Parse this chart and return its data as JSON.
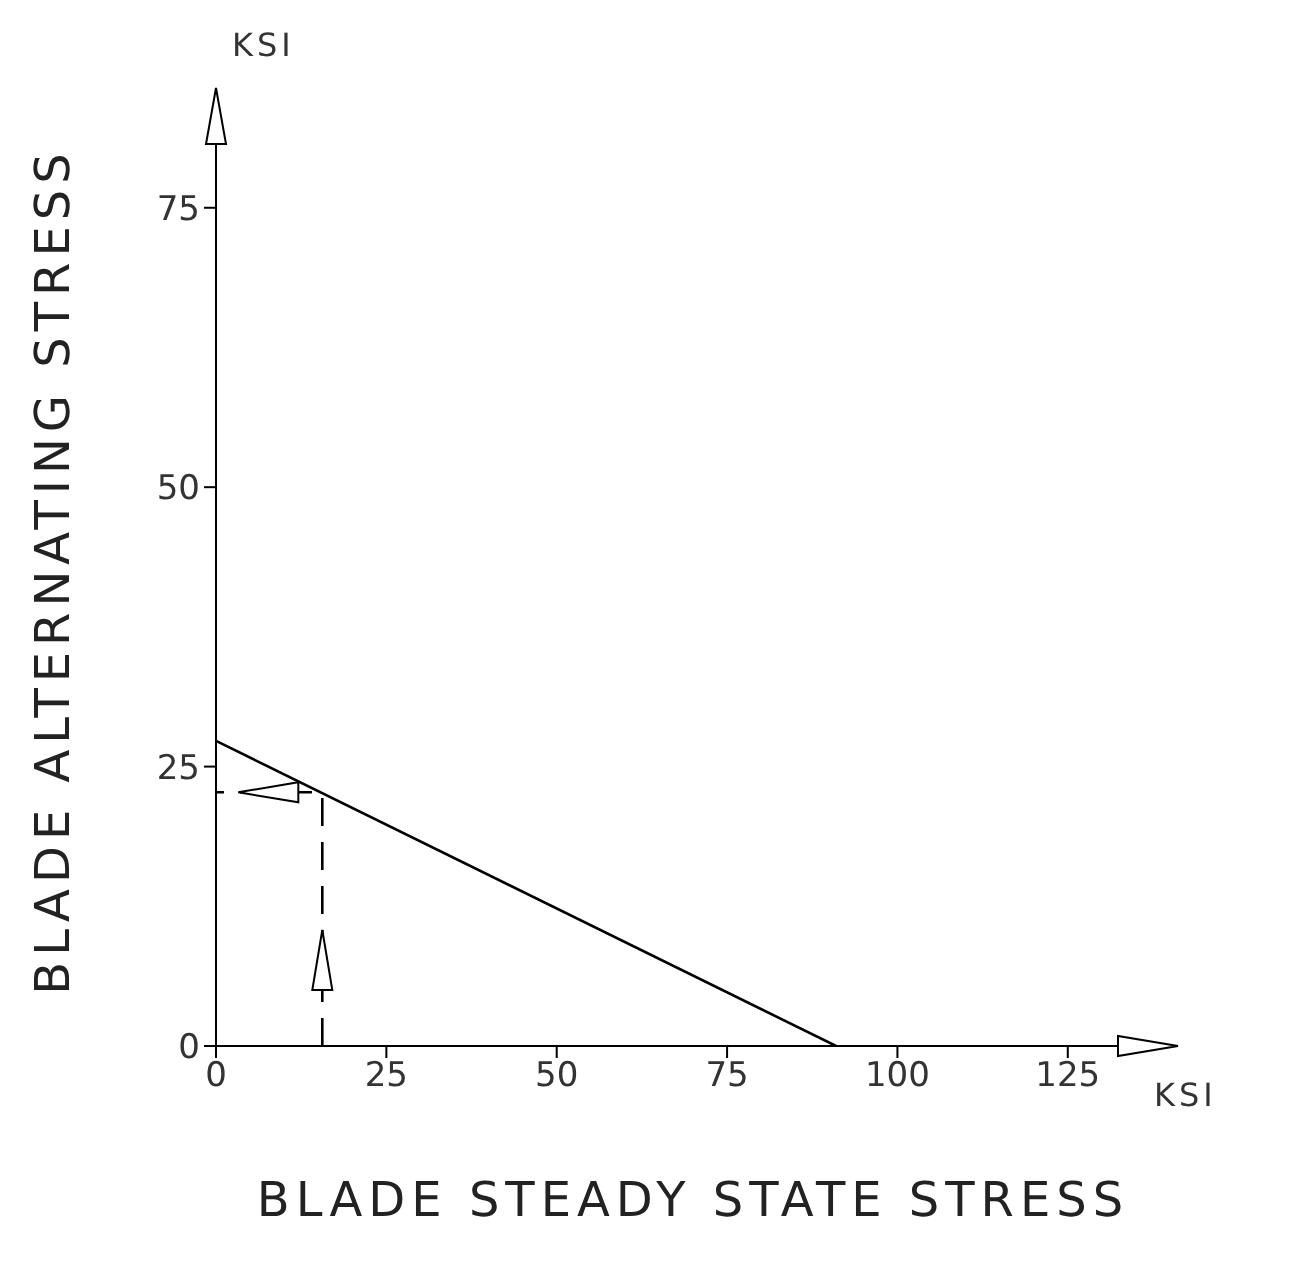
{
  "chart_data": {
    "type": "line",
    "xlabel": "BLADE STEADY STATE STRESS",
    "ylabel": "BLADE ALTERNATING STRESS",
    "xlim": [
      0,
      140
    ],
    "ylim": [
      0,
      85
    ],
    "xticks": [
      0,
      25,
      50,
      75,
      100,
      125
    ],
    "yticks": [
      0,
      25,
      50,
      75
    ],
    "annotations": [
      "KSI",
      "KSI"
    ],
    "marker": "none",
    "series": [
      {
        "color": "#000000",
        "x": [
          0,
          91
        ],
        "values": [
          27.3,
          0
        ],
        "line_style": "solid"
      },
      {
        "color": "#000000",
        "x": [
          15.6,
          15.6,
          0
        ],
        "values": [
          0,
          22.7,
          22.7
        ],
        "line_style": "dashed"
      }
    ]
  }
}
